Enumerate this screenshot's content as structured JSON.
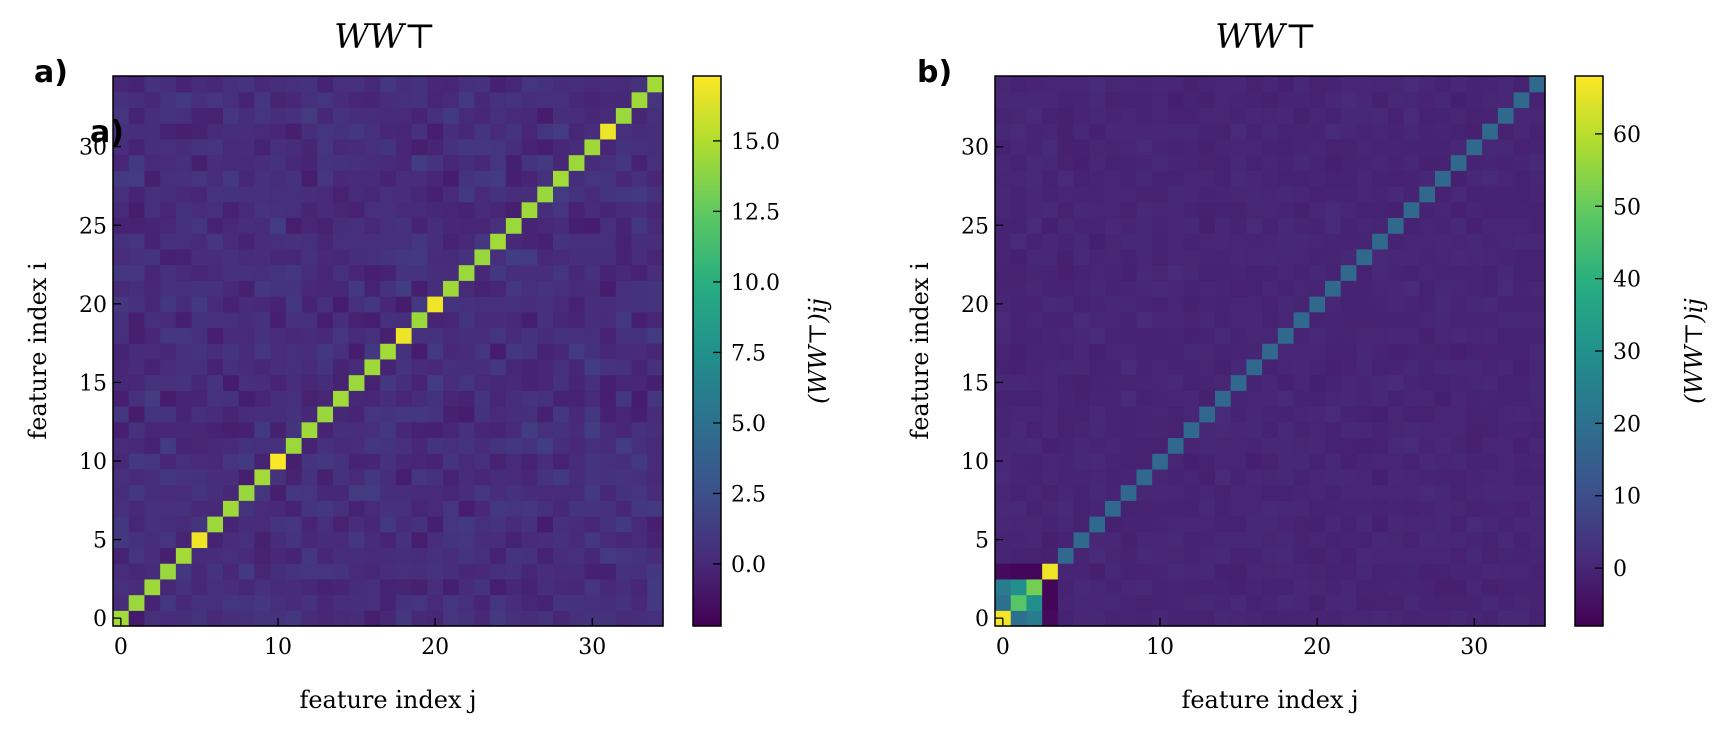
{
  "chart_data": [
    {
      "type": "heatmap",
      "panel_label": "a)",
      "inner_label": "a)",
      "title": "WW⊤",
      "xlabel": "feature index j",
      "ylabel": "feature index i",
      "n": 35,
      "xticks": [
        0,
        10,
        20,
        30
      ],
      "yticks": [
        0,
        5,
        10,
        15,
        20,
        25,
        30
      ],
      "colorbar_label": "(WW⊤)ij",
      "colorbar_ticks": [
        0.0,
        2.5,
        5.0,
        7.5,
        10.0,
        12.5,
        15.0
      ],
      "colorbar_tick_labels": [
        "0.0",
        "2.5",
        "5.0",
        "7.5",
        "10.0",
        "12.5",
        "15.0"
      ],
      "vmin": -2.2,
      "vmax": 17.3,
      "diagonal_values": [
        14.6,
        14.4,
        14.5,
        14.3,
        14.6,
        16.9,
        14.4,
        14.5,
        14.3,
        14.6,
        17.2,
        14.4,
        14.5,
        14.3,
        14.6,
        14.4,
        14.5,
        14.6,
        16.8,
        14.4,
        16.9,
        14.5,
        14.4,
        14.3,
        14.6,
        14.4,
        14.5,
        14.3,
        14.6,
        14.4,
        14.5,
        16.8,
        14.4,
        14.5,
        14.6
      ],
      "offdiag_mean": 0.3,
      "offdiag_spread": 1.1
    },
    {
      "type": "heatmap",
      "panel_label": "b)",
      "title": "WW⊤",
      "xlabel": "feature index j",
      "ylabel": "feature index i",
      "n": 35,
      "xticks": [
        0,
        10,
        20,
        30
      ],
      "yticks": [
        0,
        5,
        10,
        15,
        20,
        25,
        30
      ],
      "colorbar_label": "(WW⊤)ij",
      "colorbar_ticks": [
        0,
        10,
        20,
        30,
        40,
        50,
        60
      ],
      "colorbar_tick_labels": [
        "0",
        "10",
        "20",
        "30",
        "40",
        "50",
        "60"
      ],
      "vmin": -8,
      "vmax": 68,
      "diagonal_values": [
        67,
        48,
        52,
        66,
        18,
        18,
        18,
        18,
        18,
        18,
        18,
        18,
        18,
        18,
        18,
        18,
        18,
        18,
        18,
        18,
        18,
        18,
        18,
        18,
        18,
        18,
        18,
        18,
        18,
        18,
        18,
        18,
        18,
        18,
        18
      ],
      "block_offdiag": [
        {
          "i": 0,
          "j": 1,
          "value": 20
        },
        {
          "i": 1,
          "j": 0,
          "value": 20
        },
        {
          "i": 0,
          "j": 2,
          "value": 24
        },
        {
          "i": 2,
          "j": 0,
          "value": 24
        },
        {
          "i": 1,
          "j": 2,
          "value": 30
        },
        {
          "i": 2,
          "j": 1,
          "value": 30
        },
        {
          "i": 0,
          "j": 3,
          "value": -6
        },
        {
          "i": 3,
          "j": 0,
          "value": -6
        },
        {
          "i": 1,
          "j": 3,
          "value": -7
        },
        {
          "i": 3,
          "j": 1,
          "value": -7
        },
        {
          "i": 2,
          "j": 3,
          "value": -7
        },
        {
          "i": 3,
          "j": 2,
          "value": -7
        }
      ],
      "offdiag_mean": 0.0,
      "offdiag_spread": 1.3
    }
  ]
}
